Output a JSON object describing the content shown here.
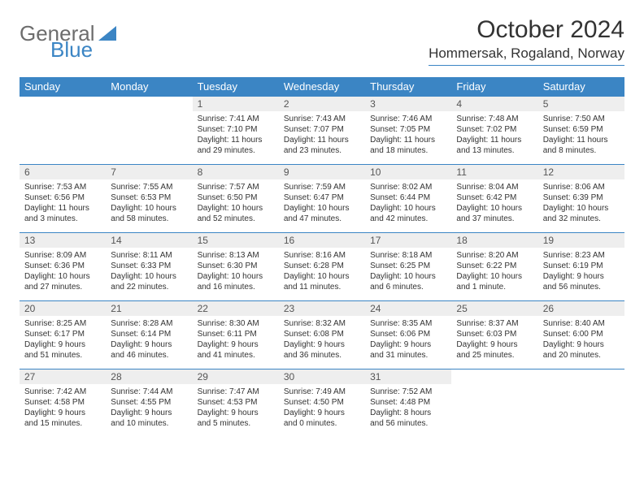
{
  "brand": {
    "part1": "General",
    "part2": "Blue"
  },
  "title": "October 2024",
  "location": "Hommersak, Rogaland, Norway",
  "colors": {
    "accent": "#3b85c4",
    "header_text": "#ffffff",
    "daynum_bg": "#eeeeee",
    "text": "#333333",
    "logo_gray": "#6d6d6d"
  },
  "day_headers": [
    "Sunday",
    "Monday",
    "Tuesday",
    "Wednesday",
    "Thursday",
    "Friday",
    "Saturday"
  ],
  "weeks": [
    [
      null,
      null,
      {
        "n": "1",
        "sunrise": "7:41 AM",
        "sunset": "7:10 PM",
        "day_h": 11,
        "day_m": 29
      },
      {
        "n": "2",
        "sunrise": "7:43 AM",
        "sunset": "7:07 PM",
        "day_h": 11,
        "day_m": 23
      },
      {
        "n": "3",
        "sunrise": "7:46 AM",
        "sunset": "7:05 PM",
        "day_h": 11,
        "day_m": 18
      },
      {
        "n": "4",
        "sunrise": "7:48 AM",
        "sunset": "7:02 PM",
        "day_h": 11,
        "day_m": 13
      },
      {
        "n": "5",
        "sunrise": "7:50 AM",
        "sunset": "6:59 PM",
        "day_h": 11,
        "day_m": 8
      }
    ],
    [
      {
        "n": "6",
        "sunrise": "7:53 AM",
        "sunset": "6:56 PM",
        "day_h": 11,
        "day_m": 3
      },
      {
        "n": "7",
        "sunrise": "7:55 AM",
        "sunset": "6:53 PM",
        "day_h": 10,
        "day_m": 58
      },
      {
        "n": "8",
        "sunrise": "7:57 AM",
        "sunset": "6:50 PM",
        "day_h": 10,
        "day_m": 52
      },
      {
        "n": "9",
        "sunrise": "7:59 AM",
        "sunset": "6:47 PM",
        "day_h": 10,
        "day_m": 47
      },
      {
        "n": "10",
        "sunrise": "8:02 AM",
        "sunset": "6:44 PM",
        "day_h": 10,
        "day_m": 42
      },
      {
        "n": "11",
        "sunrise": "8:04 AM",
        "sunset": "6:42 PM",
        "day_h": 10,
        "day_m": 37
      },
      {
        "n": "12",
        "sunrise": "8:06 AM",
        "sunset": "6:39 PM",
        "day_h": 10,
        "day_m": 32
      }
    ],
    [
      {
        "n": "13",
        "sunrise": "8:09 AM",
        "sunset": "6:36 PM",
        "day_h": 10,
        "day_m": 27
      },
      {
        "n": "14",
        "sunrise": "8:11 AM",
        "sunset": "6:33 PM",
        "day_h": 10,
        "day_m": 22
      },
      {
        "n": "15",
        "sunrise": "8:13 AM",
        "sunset": "6:30 PM",
        "day_h": 10,
        "day_m": 16
      },
      {
        "n": "16",
        "sunrise": "8:16 AM",
        "sunset": "6:28 PM",
        "day_h": 10,
        "day_m": 11
      },
      {
        "n": "17",
        "sunrise": "8:18 AM",
        "sunset": "6:25 PM",
        "day_h": 10,
        "day_m": 6
      },
      {
        "n": "18",
        "sunrise": "8:20 AM",
        "sunset": "6:22 PM",
        "day_h": 10,
        "day_m": 1
      },
      {
        "n": "19",
        "sunrise": "8:23 AM",
        "sunset": "6:19 PM",
        "day_h": 9,
        "day_m": 56
      }
    ],
    [
      {
        "n": "20",
        "sunrise": "8:25 AM",
        "sunset": "6:17 PM",
        "day_h": 9,
        "day_m": 51
      },
      {
        "n": "21",
        "sunrise": "8:28 AM",
        "sunset": "6:14 PM",
        "day_h": 9,
        "day_m": 46
      },
      {
        "n": "22",
        "sunrise": "8:30 AM",
        "sunset": "6:11 PM",
        "day_h": 9,
        "day_m": 41
      },
      {
        "n": "23",
        "sunrise": "8:32 AM",
        "sunset": "6:08 PM",
        "day_h": 9,
        "day_m": 36
      },
      {
        "n": "24",
        "sunrise": "8:35 AM",
        "sunset": "6:06 PM",
        "day_h": 9,
        "day_m": 31
      },
      {
        "n": "25",
        "sunrise": "8:37 AM",
        "sunset": "6:03 PM",
        "day_h": 9,
        "day_m": 25
      },
      {
        "n": "26",
        "sunrise": "8:40 AM",
        "sunset": "6:00 PM",
        "day_h": 9,
        "day_m": 20
      }
    ],
    [
      {
        "n": "27",
        "sunrise": "7:42 AM",
        "sunset": "4:58 PM",
        "day_h": 9,
        "day_m": 15
      },
      {
        "n": "28",
        "sunrise": "7:44 AM",
        "sunset": "4:55 PM",
        "day_h": 9,
        "day_m": 10
      },
      {
        "n": "29",
        "sunrise": "7:47 AM",
        "sunset": "4:53 PM",
        "day_h": 9,
        "day_m": 5
      },
      {
        "n": "30",
        "sunrise": "7:49 AM",
        "sunset": "4:50 PM",
        "day_h": 9,
        "day_m": 0
      },
      {
        "n": "31",
        "sunrise": "7:52 AM",
        "sunset": "4:48 PM",
        "day_h": 8,
        "day_m": 56
      },
      null,
      null
    ]
  ],
  "labels": {
    "sunrise": "Sunrise:",
    "sunset": "Sunset:",
    "daylight": "Daylight:",
    "hours_word": "hours",
    "and_word": "and",
    "minutes_word": "minutes.",
    "minute_word": "minute."
  }
}
